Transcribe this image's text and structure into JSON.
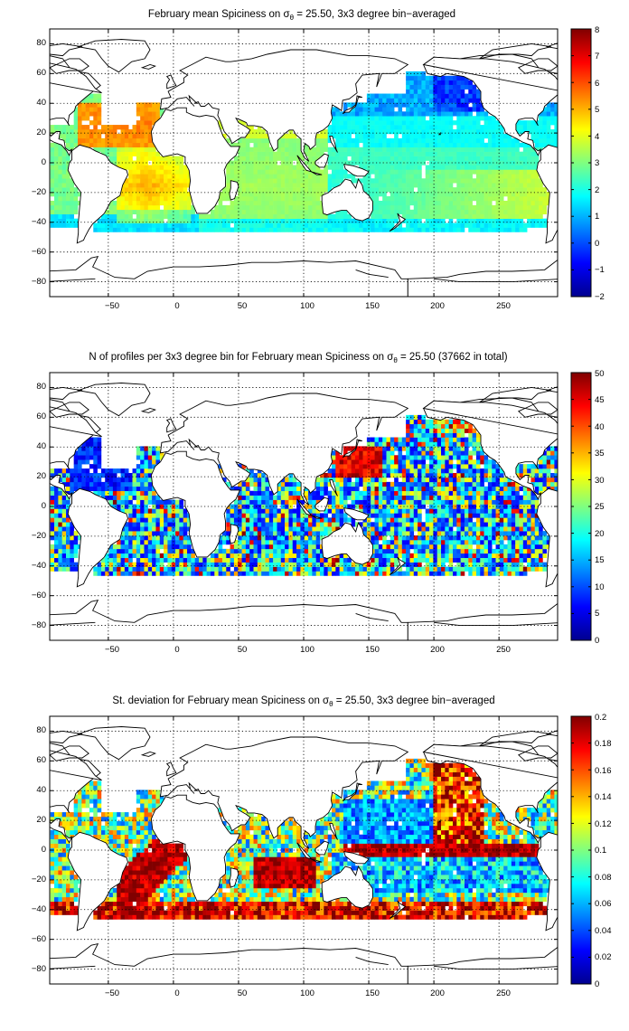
{
  "chart_data": [
    {
      "type": "heatmap",
      "title_pre": "February mean Spiciness on σ",
      "title_sub": "θ",
      "title_post": " = 25.50, 3x3 degree bin−averaged",
      "x_ticks": [
        "−50",
        "0",
        "50",
        "100",
        "150",
        "200",
        "250"
      ],
      "y_ticks": [
        "80",
        "60",
        "40",
        "20",
        "0",
        "−20",
        "−40",
        "−60",
        "−80"
      ],
      "xlim": [
        -95,
        295
      ],
      "ylim": [
        -90,
        90
      ],
      "grid": true,
      "colormap": "jet",
      "colorbar": {
        "range": [
          -2,
          8
        ],
        "ticks": [
          "8",
          "7",
          "6",
          "5",
          "4",
          "3",
          "2",
          "1",
          "0",
          "−1",
          "−2"
        ]
      }
    },
    {
      "type": "heatmap",
      "title_pre": "N of profiles per 3x3 degree bin for February mean Spiciness on σ",
      "title_sub": "θ",
      "title_post": " = 25.50 (37662 in total)",
      "x_ticks": [
        "−50",
        "0",
        "50",
        "100",
        "150",
        "200",
        "250"
      ],
      "y_ticks": [
        "80",
        "60",
        "40",
        "20",
        "0",
        "−20",
        "−40",
        "−60",
        "−80"
      ],
      "xlim": [
        -95,
        295
      ],
      "ylim": [
        -90,
        90
      ],
      "grid": true,
      "colormap": "jet",
      "colorbar": {
        "range": [
          0,
          50
        ],
        "ticks": [
          "50",
          "45",
          "40",
          "35",
          "30",
          "25",
          "20",
          "15",
          "10",
          "5",
          "0"
        ]
      }
    },
    {
      "type": "heatmap",
      "title_pre": "St. deviation for February mean Spiciness on σ",
      "title_sub": "θ",
      "title_post": " = 25.50, 3x3 degree bin−averaged",
      "x_ticks": [
        "−50",
        "0",
        "50",
        "100",
        "150",
        "200",
        "250"
      ],
      "y_ticks": [
        "80",
        "60",
        "40",
        "20",
        "0",
        "−20",
        "−40",
        "−60",
        "−80"
      ],
      "xlim": [
        -95,
        295
      ],
      "ylim": [
        -90,
        90
      ],
      "grid": true,
      "colormap": "jet",
      "colorbar": {
        "range": [
          0,
          0.2
        ],
        "ticks": [
          "0.2",
          "0.18",
          "0.16",
          "0.14",
          "0.12",
          "0.1",
          "0.08",
          "0.06",
          "0.04",
          "0.02",
          "0"
        ]
      }
    }
  ]
}
